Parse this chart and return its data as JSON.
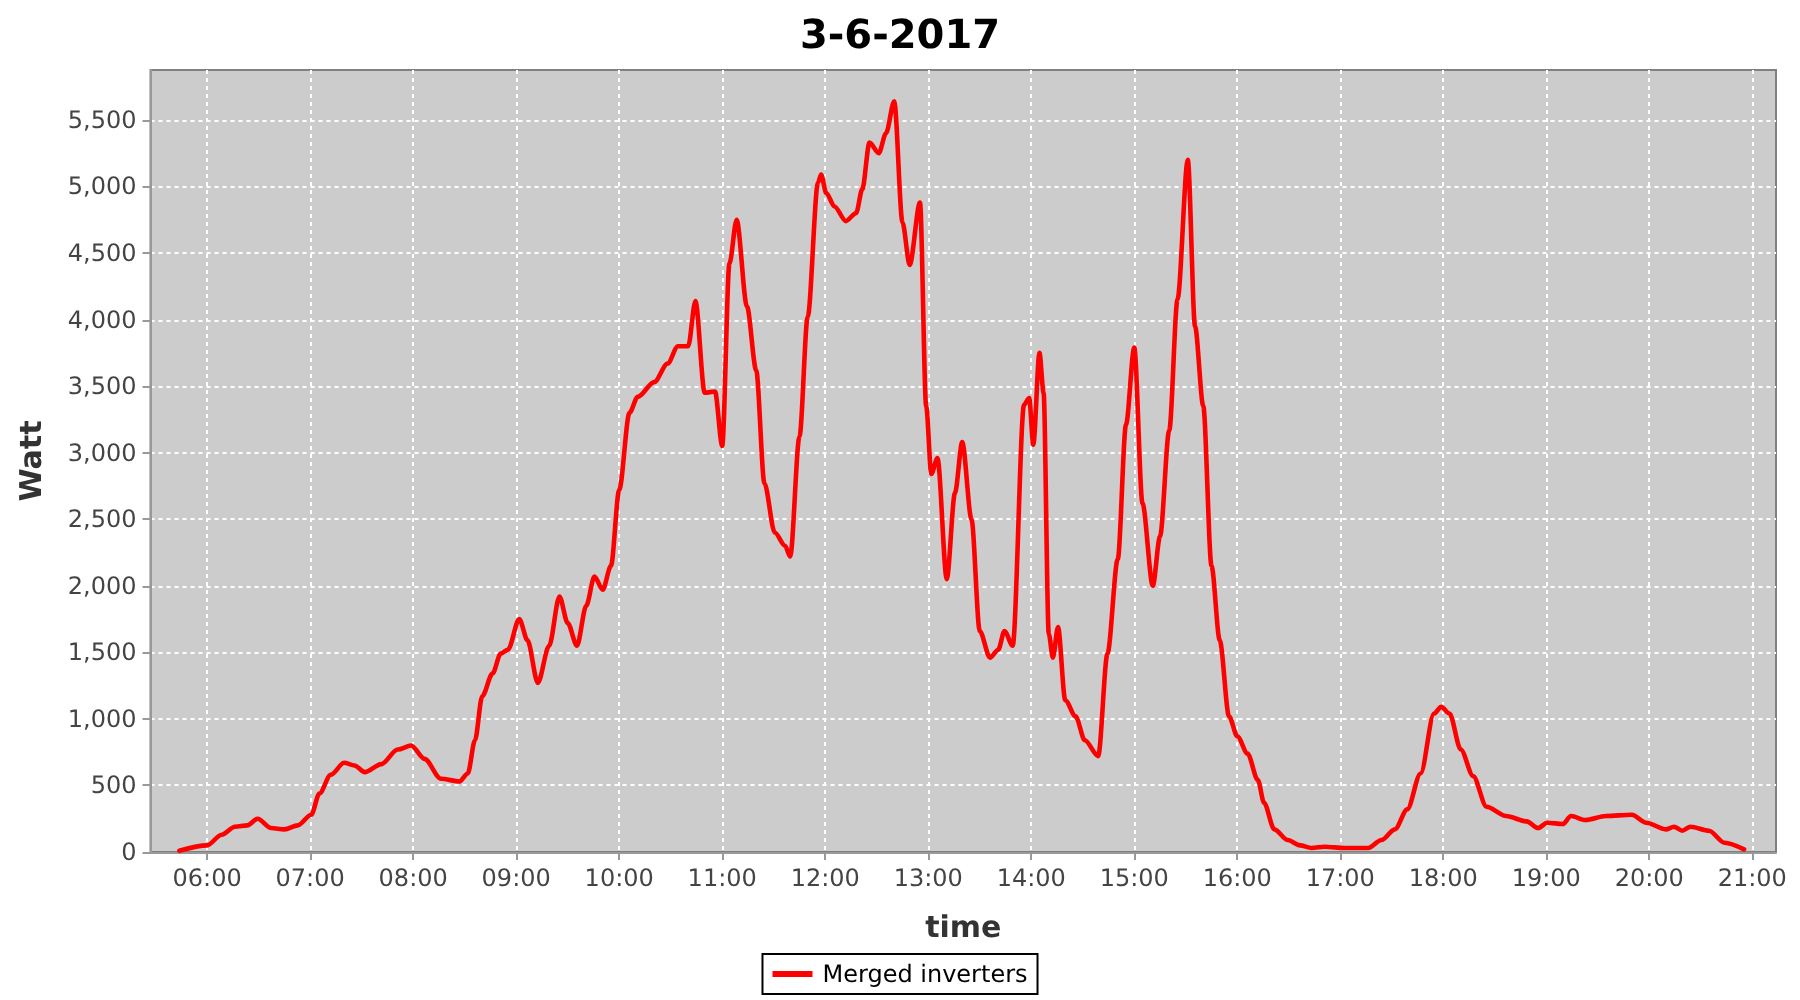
{
  "chart_data": {
    "type": "line",
    "title": "3-6-2017",
    "xlabel": "time",
    "ylabel": "Watt",
    "x": [
      5.73,
      6.0,
      6.14,
      6.27,
      6.39,
      6.49,
      6.62,
      6.75,
      6.88,
      7.01,
      7.09,
      7.2,
      7.33,
      7.43,
      7.53,
      7.69,
      7.85,
      7.98,
      8.11,
      8.27,
      8.45,
      8.53,
      8.6,
      8.67,
      8.77,
      8.85,
      8.92,
      9.03,
      9.11,
      9.21,
      9.32,
      9.42,
      9.5,
      9.59,
      9.68,
      9.76,
      9.84,
      9.92,
      10.0,
      10.1,
      10.18,
      10.34,
      10.47,
      10.57,
      10.67,
      10.74,
      10.83,
      10.93,
      11.0,
      11.07,
      11.14,
      11.24,
      11.33,
      11.41,
      11.51,
      11.61,
      11.66,
      11.75,
      11.83,
      11.93,
      11.96,
      12.01,
      12.09,
      12.2,
      12.3,
      12.36,
      12.43,
      12.52,
      12.59,
      12.67,
      12.75,
      12.82,
      12.92,
      12.98,
      13.03,
      13.09,
      13.18,
      13.26,
      13.33,
      13.42,
      13.5,
      13.6,
      13.68,
      13.74,
      13.82,
      13.93,
      13.98,
      14.02,
      14.08,
      14.12,
      14.17,
      14.21,
      14.26,
      14.33,
      14.43,
      14.52,
      14.65,
      14.74,
      14.84,
      14.92,
      15.0,
      15.08,
      15.18,
      15.25,
      15.34,
      15.42,
      15.52,
      15.59,
      15.67,
      15.75,
      15.83,
      15.92,
      16.0,
      16.1,
      16.2,
      16.26,
      16.36,
      16.49,
      16.61,
      16.72,
      16.85,
      17.04,
      17.27,
      17.4,
      17.53,
      17.65,
      17.78,
      17.91,
      17.98,
      18.06,
      18.17,
      18.29,
      18.42,
      18.61,
      18.81,
      18.92,
      19.01,
      19.16,
      19.24,
      19.38,
      19.58,
      19.83,
      19.97,
      20.16,
      20.24,
      20.32,
      20.4,
      20.58,
      20.73,
      20.92
    ],
    "series": [
      {
        "name": "Merged inverters",
        "color": "#ff0000",
        "values": [
          10,
          50,
          130,
          190,
          200,
          250,
          180,
          170,
          200,
          280,
          440,
          580,
          670,
          650,
          600,
          660,
          770,
          800,
          700,
          550,
          530,
          590,
          840,
          1170,
          1340,
          1490,
          1520,
          1750,
          1590,
          1270,
          1550,
          1920,
          1720,
          1550,
          1850,
          2070,
          1970,
          2150,
          2720,
          3300,
          3420,
          3530,
          3670,
          3800,
          3800,
          4140,
          3450,
          3460,
          3050,
          4420,
          4750,
          4100,
          3620,
          2770,
          2400,
          2300,
          2220,
          3120,
          4020,
          5030,
          5090,
          4950,
          4850,
          4740,
          4800,
          4980,
          5330,
          5250,
          5400,
          5640,
          4730,
          4410,
          4880,
          3350,
          2840,
          2960,
          2050,
          2700,
          3080,
          2500,
          1660,
          1460,
          1520,
          1660,
          1550,
          3360,
          3410,
          3060,
          3750,
          3450,
          1640,
          1460,
          1690,
          1140,
          1020,
          840,
          720,
          1490,
          2200,
          3210,
          3790,
          2620,
          2000,
          2370,
          3170,
          4150,
          5200,
          3950,
          3350,
          2150,
          1590,
          1020,
          870,
          740,
          540,
          370,
          170,
          90,
          50,
          30,
          40,
          30,
          30,
          90,
          170,
          320,
          590,
          1040,
          1090,
          1040,
          770,
          570,
          340,
          270,
          230,
          180,
          220,
          210,
          270,
          240,
          270,
          280,
          220,
          170,
          190,
          160,
          190,
          160,
          70,
          20
        ]
      }
    ],
    "xlim": [
      5.45,
      21.23
    ],
    "xticks": [
      {
        "value": 6,
        "label": "06:00"
      },
      {
        "value": 7,
        "label": "07:00"
      },
      {
        "value": 8,
        "label": "08:00"
      },
      {
        "value": 9,
        "label": "09:00"
      },
      {
        "value": 10,
        "label": "10:00"
      },
      {
        "value": 11,
        "label": "11:00"
      },
      {
        "value": 12,
        "label": "12:00"
      },
      {
        "value": 13,
        "label": "13:00"
      },
      {
        "value": 14,
        "label": "14:00"
      },
      {
        "value": 15,
        "label": "15:00"
      },
      {
        "value": 16,
        "label": "16:00"
      },
      {
        "value": 17,
        "label": "17:00"
      },
      {
        "value": 18,
        "label": "18:00"
      },
      {
        "value": 19,
        "label": "19:00"
      },
      {
        "value": 20,
        "label": "20:00"
      },
      {
        "value": 21,
        "label": "21:00"
      }
    ],
    "ylim": [
      0,
      5875
    ],
    "yticks": [
      0,
      500,
      {
        "value": 1000,
        "label": "1,000"
      },
      {
        "value": 1500,
        "label": "1,500"
      },
      {
        "value": 2000,
        "label": "2,000"
      },
      {
        "value": 2500,
        "label": "2,500"
      },
      {
        "value": 3000,
        "label": "3,000"
      },
      {
        "value": 3500,
        "label": "3,500"
      },
      {
        "value": 4000,
        "label": "4,000"
      },
      {
        "value": 4500,
        "label": "4,500"
      },
      {
        "value": 5000,
        "label": "5,000"
      },
      {
        "value": 5500,
        "label": "5,500"
      }
    ],
    "grid": true,
    "legend": "bottom"
  }
}
